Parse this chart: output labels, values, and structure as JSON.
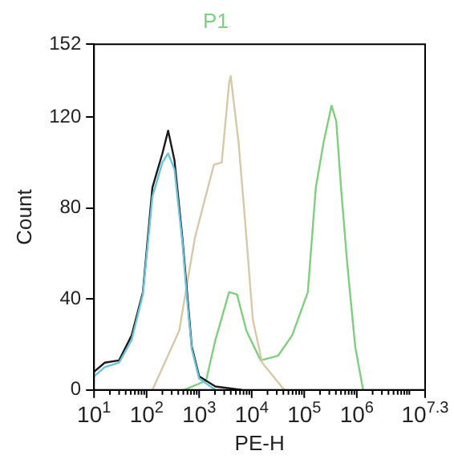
{
  "chart_data": {
    "type": "line",
    "title": "P1",
    "xlabel": "PE-H",
    "ylabel": "Count",
    "log": "x",
    "xlim": [
      10,
      19952623
    ],
    "xticks": [
      {
        "value": 10,
        "label": "10$^{1}$"
      },
      {
        "value": 20,
        "label": null
      },
      {
        "value": 30,
        "label": null
      },
      {
        "value": 40,
        "label": null
      },
      {
        "value": 50,
        "label": null
      },
      {
        "value": 60,
        "label": null
      },
      {
        "value": 70,
        "label": null
      },
      {
        "value": 80,
        "label": null
      },
      {
        "value": 90,
        "label": null
      },
      {
        "value": 100,
        "label": "10$^{2}$"
      },
      {
        "value": 200,
        "label": null
      },
      {
        "value": 300,
        "label": null
      },
      {
        "value": 400,
        "label": null
      },
      {
        "value": 500,
        "label": null
      },
      {
        "value": 600,
        "label": null
      },
      {
        "value": 700,
        "label": null
      },
      {
        "value": 800,
        "label": null
      },
      {
        "value": 900,
        "label": null
      },
      {
        "value": 1000,
        "label": "10$^{3}$"
      },
      {
        "value": 2000,
        "label": null
      },
      {
        "value": 3000,
        "label": null
      },
      {
        "value": 4000,
        "label": null
      },
      {
        "value": 5000,
        "label": null
      },
      {
        "value": 6000,
        "label": null
      },
      {
        "value": 7000,
        "label": null
      },
      {
        "value": 8000,
        "label": null
      },
      {
        "value": 9000,
        "label": null
      },
      {
        "value": 10000,
        "label": "10$^{4}$"
      },
      {
        "value": 20000,
        "label": null
      },
      {
        "value": 30000,
        "label": null
      },
      {
        "value": 40000,
        "label": null
      },
      {
        "value": 50000,
        "label": null
      },
      {
        "value": 60000,
        "label": null
      },
      {
        "value": 70000,
        "label": null
      },
      {
        "value": 80000,
        "label": null
      },
      {
        "value": 90000,
        "label": null
      },
      {
        "value": 100000,
        "label": "10$^{5}$"
      },
      {
        "value": 200000,
        "label": null
      },
      {
        "value": 300000,
        "label": null
      },
      {
        "value": 400000,
        "label": null
      },
      {
        "value": 500000,
        "label": null
      },
      {
        "value": 600000,
        "label": null
      },
      {
        "value": 700000,
        "label": null
      },
      {
        "value": 800000,
        "label": null
      },
      {
        "value": 900000,
        "label": null
      },
      {
        "value": 1000000,
        "label": "10$^{6}$"
      },
      {
        "value": 2000000,
        "label": null
      },
      {
        "value": 3000000,
        "label": null
      },
      {
        "value": 4000000,
        "label": null
      },
      {
        "value": 5000000,
        "label": null
      },
      {
        "value": 6000000,
        "label": null
      },
      {
        "value": 7000000,
        "label": null
      },
      {
        "value": 8000000,
        "label": null
      },
      {
        "value": 9000000,
        "label": null
      },
      {
        "value": 10000000,
        "label": null
      },
      {
        "value": 19952623,
        "label": "10$^{7.3}$"
      }
    ],
    "ylim": [
      0,
      152
    ],
    "yticks": [
      0,
      40,
      80,
      120,
      152
    ],
    "grid": false,
    "legend": false,
    "marker": "none",
    "line_style": "solid",
    "series": [
      {
        "color": "#6cc4dc",
        "x": [
          10,
          16,
          30,
          52,
          85,
          129,
          200,
          257,
          339,
          479,
          589,
          724,
          1000,
          2040
        ],
        "values": [
          6,
          10,
          12,
          22,
          42,
          85,
          100,
          104,
          97,
          65,
          40,
          18,
          5,
          0
        ]
      },
      {
        "color": "#1a1a1a",
        "x": [
          10,
          16,
          30,
          52,
          85,
          129,
          200,
          257,
          339,
          479,
          589,
          724,
          1000,
          2040,
          6460
        ],
        "values": [
          8,
          12,
          13,
          24,
          43,
          89,
          104,
          114,
          101,
          67,
          43,
          19,
          6,
          1.5,
          0
        ]
      },
      {
        "color": "#d8c8a8",
        "x": [
          129,
          417,
          832,
          1905,
          2690,
          3720,
          3980,
          5620,
          7940,
          10500,
          15800,
          41700
        ],
        "values": [
          0,
          26,
          67,
          99,
          100,
          135,
          138,
          109,
          67,
          31,
          12,
          0
        ]
      },
      {
        "color": "#7ed07e",
        "x": [
          513,
          1350,
          2040,
          3720,
          5250,
          7940,
          14800,
          31600,
          58900,
          117000,
          166000,
          234000,
          331000,
          407000,
          501000,
          661000,
          933000,
          1320000
        ],
        "values": [
          0,
          4,
          22,
          43,
          42,
          26,
          13,
          15,
          24,
          43,
          89,
          109,
          125,
          118,
          89,
          55,
          19,
          0
        ]
      }
    ]
  }
}
